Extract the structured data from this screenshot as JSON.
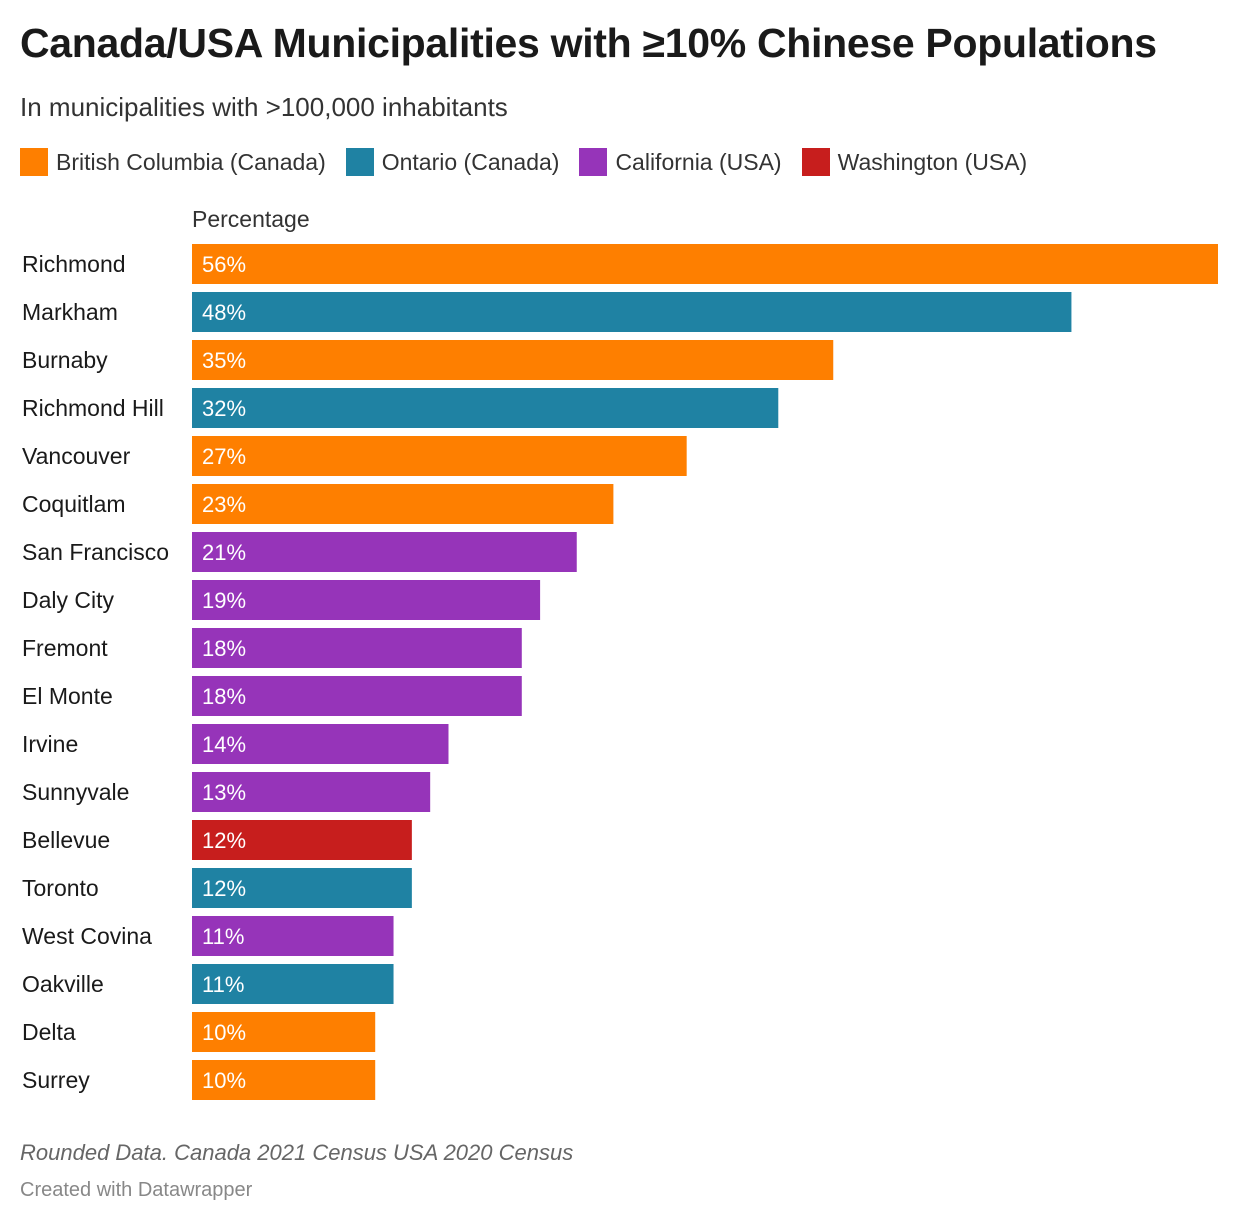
{
  "header": {
    "title": "Canada/USA Municipalities with ≥10% Chinese Populations",
    "subtitle": "In municipalities with >100,000 inhabitants"
  },
  "legend": [
    {
      "label": "British Columbia (Canada)",
      "color": "#fe7f00"
    },
    {
      "label": "Ontario (Canada)",
      "color": "#1f82a3"
    },
    {
      "label": "California (USA)",
      "color": "#9634b9"
    },
    {
      "label": "Washington (USA)",
      "color": "#c71e1d"
    }
  ],
  "column_header": "Percentage",
  "chart_data": {
    "type": "bar",
    "orientation": "horizontal",
    "xlim": [
      0,
      56
    ],
    "rows": [
      {
        "label": "Richmond",
        "value": 56,
        "value_label": "56%",
        "group": "British Columbia (Canada)",
        "color": "#fe7f00"
      },
      {
        "label": "Markham",
        "value": 48,
        "value_label": "48%",
        "group": "Ontario (Canada)",
        "color": "#1f82a3"
      },
      {
        "label": "Burnaby",
        "value": 35,
        "value_label": "35%",
        "group": "British Columbia (Canada)",
        "color": "#fe7f00"
      },
      {
        "label": "Richmond Hill",
        "value": 32,
        "value_label": "32%",
        "group": "Ontario (Canada)",
        "color": "#1f82a3"
      },
      {
        "label": "Vancouver",
        "value": 27,
        "value_label": "27%",
        "group": "British Columbia (Canada)",
        "color": "#fe7f00"
      },
      {
        "label": "Coquitlam",
        "value": 23,
        "value_label": "23%",
        "group": "British Columbia (Canada)",
        "color": "#fe7f00"
      },
      {
        "label": "San Francisco",
        "value": 21,
        "value_label": "21%",
        "group": "California (USA)",
        "color": "#9634b9"
      },
      {
        "label": "Daly City",
        "value": 19,
        "value_label": "19%",
        "group": "California (USA)",
        "color": "#9634b9"
      },
      {
        "label": "Fremont",
        "value": 18,
        "value_label": "18%",
        "group": "California (USA)",
        "color": "#9634b9"
      },
      {
        "label": "El Monte",
        "value": 18,
        "value_label": "18%",
        "group": "California (USA)",
        "color": "#9634b9"
      },
      {
        "label": "Irvine",
        "value": 14,
        "value_label": "14%",
        "group": "California (USA)",
        "color": "#9634b9"
      },
      {
        "label": "Sunnyvale",
        "value": 13,
        "value_label": "13%",
        "group": "California (USA)",
        "color": "#9634b9"
      },
      {
        "label": "Bellevue",
        "value": 12,
        "value_label": "12%",
        "group": "Washington (USA)",
        "color": "#c71e1d"
      },
      {
        "label": "Toronto",
        "value": 12,
        "value_label": "12%",
        "group": "Ontario (Canada)",
        "color": "#1f82a3"
      },
      {
        "label": "West Covina",
        "value": 11,
        "value_label": "11%",
        "group": "California (USA)",
        "color": "#9634b9"
      },
      {
        "label": "Oakville",
        "value": 11,
        "value_label": "11%",
        "group": "Ontario (Canada)",
        "color": "#1f82a3"
      },
      {
        "label": "Delta",
        "value": 10,
        "value_label": "10%",
        "group": "British Columbia (Canada)",
        "color": "#fe7f00"
      },
      {
        "label": "Surrey",
        "value": 10,
        "value_label": "10%",
        "group": "British Columbia (Canada)",
        "color": "#fe7f00"
      }
    ]
  },
  "footer": {
    "note": "Rounded Data. Canada 2021 Census USA 2020 Census",
    "credit": "Created with Datawrapper"
  }
}
